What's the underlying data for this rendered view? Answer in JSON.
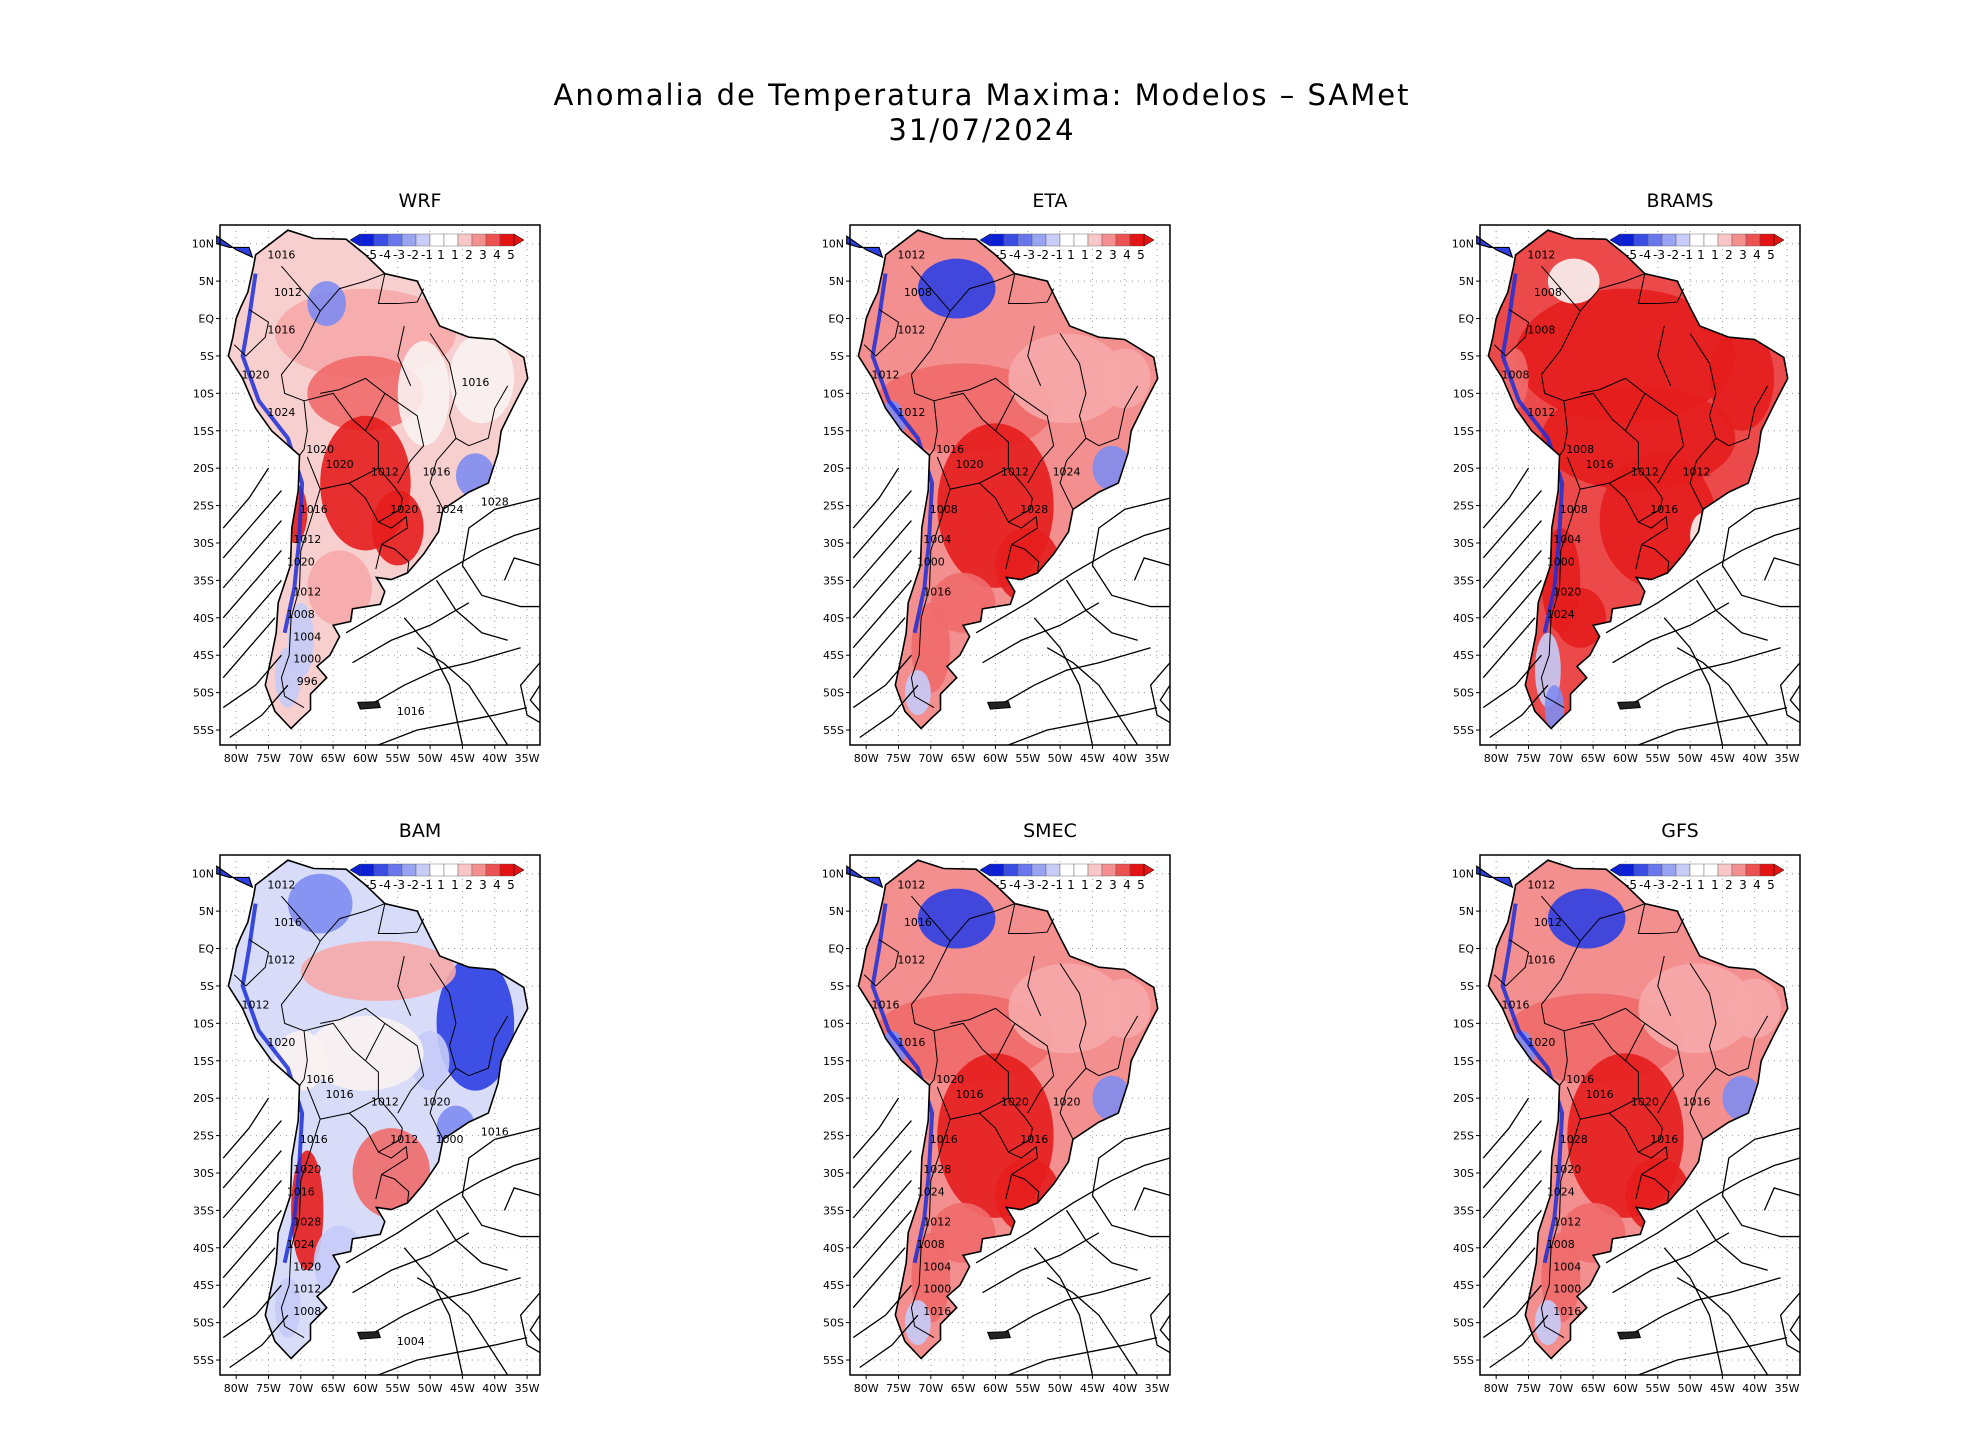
{
  "header": {
    "title": "Anomalia de Temperatura Maxima: Modelos – SAMet",
    "date": "31/07/2024"
  },
  "axes": {
    "lat_labels": [
      "10N",
      "5N",
      "EQ",
      "5S",
      "10S",
      "15S",
      "20S",
      "25S",
      "30S",
      "35S",
      "40S",
      "45S",
      "50S",
      "55S"
    ],
    "lon_labels": [
      "80W",
      "75W",
      "70W",
      "65W",
      "60W",
      "55W",
      "50W",
      "45W",
      "40W",
      "35W"
    ]
  },
  "legend": {
    "labels": [
      "-5",
      "-4",
      "-3",
      "-2",
      "-1",
      "1",
      "1",
      "2",
      "3",
      "4",
      "5"
    ],
    "colors": [
      "#0b1fd6",
      "#3a4ee3",
      "#6878ec",
      "#98a3f2",
      "#c7cdf8",
      "#ffffff",
      "#ffffff",
      "#f9c7c7",
      "#f38f8f",
      "#ec5252",
      "#e31313"
    ]
  },
  "panels": [
    {
      "name": "WRF",
      "tendency": "mixed",
      "isobars": [
        "1016",
        "1012",
        "1016",
        "1020",
        "1024",
        "1020",
        "1020",
        "1012",
        "1016",
        "1020",
        "1016",
        "1012",
        "1020",
        "1012",
        "1008",
        "1004",
        "1000",
        "996",
        "1016",
        "1024",
        "1028",
        "1016"
      ]
    },
    {
      "name": "ETA",
      "tendency": "warm",
      "isobars": [
        "1012",
        "1008",
        "1012",
        "1012",
        "1012",
        "1016",
        "1020",
        "1012",
        "1024",
        "1028",
        "1008",
        "1004",
        "1000",
        "1016"
      ]
    },
    {
      "name": "BRAMS",
      "tendency": "hot",
      "isobars": [
        "1012",
        "1008",
        "1008",
        "1008",
        "1012",
        "1008",
        "1016",
        "1012",
        "1012",
        "1016",
        "1008",
        "1004",
        "1000",
        "1020",
        "1024"
      ]
    },
    {
      "name": "BAM",
      "tendency": "cool",
      "isobars": [
        "1012",
        "1016",
        "1012",
        "1012",
        "1020",
        "1016",
        "1016",
        "1012",
        "1020",
        "1012",
        "1016",
        "1020",
        "1016",
        "1028",
        "1024",
        "1020",
        "1012",
        "1008",
        "1004",
        "1000",
        "1016"
      ]
    },
    {
      "name": "SMEC",
      "tendency": "warm",
      "isobars": [
        "1012",
        "1016",
        "1012",
        "1016",
        "1016",
        "1020",
        "1016",
        "1020",
        "1020",
        "1016",
        "1016",
        "1028",
        "1024",
        "1012",
        "1008",
        "1004",
        "1000",
        "1016"
      ]
    },
    {
      "name": "GFS",
      "tendency": "warm",
      "isobars": [
        "1012",
        "1012",
        "1016",
        "1016",
        "1020",
        "1016",
        "1016",
        "1020",
        "1016",
        "1016",
        "1028",
        "1020",
        "1024",
        "1012",
        "1008",
        "1004",
        "1000",
        "1016"
      ]
    }
  ]
}
